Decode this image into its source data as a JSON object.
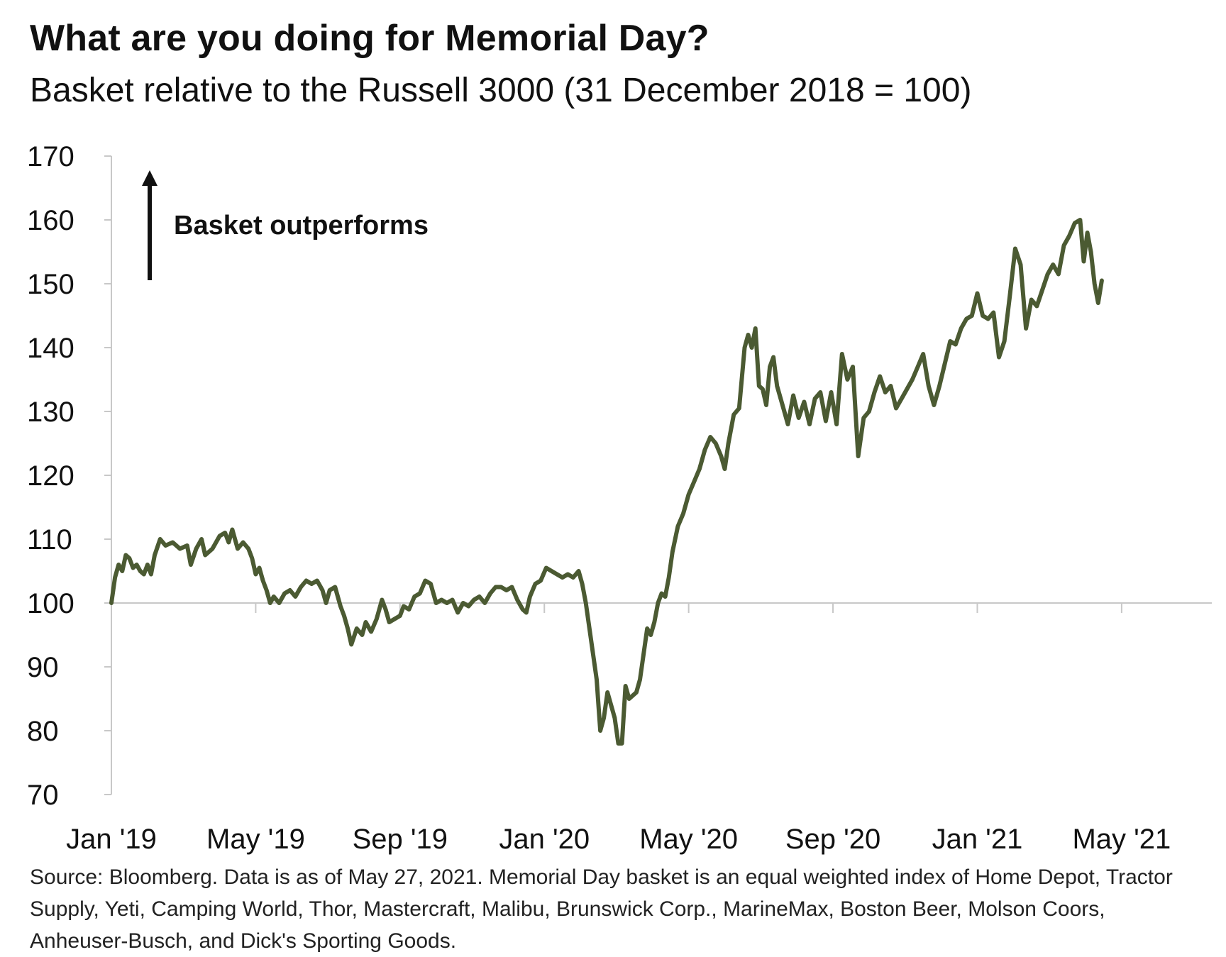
{
  "chart_data": {
    "type": "line",
    "title": "What are you doing for Memorial Day?",
    "subtitle": "Basket relative to the Russell 3000 (31 December 2018 = 100)",
    "xlabel": "",
    "ylabel": "",
    "ylim": [
      70,
      170
    ],
    "yticks": [
      170,
      160,
      150,
      140,
      130,
      120,
      110,
      100,
      90,
      80,
      70
    ],
    "xticks": [
      {
        "label": "Jan '19",
        "t": 0
      },
      {
        "label": "May '19",
        "t": 4
      },
      {
        "label": "Sep '19",
        "t": 8
      },
      {
        "label": "Jan '20",
        "t": 12
      },
      {
        "label": "May '20",
        "t": 16
      },
      {
        "label": "Sep '20",
        "t": 20
      },
      {
        "label": "Jan '21",
        "t": 24
      },
      {
        "label": "May '21",
        "t": 28
      }
    ],
    "x_unit": "months since 31 Dec 2018",
    "reference_line": 100,
    "line_color": "#4b5a32",
    "annotation": {
      "text": "Basket outperforms",
      "direction": "up"
    },
    "series": [
      {
        "name": "Memorial Day basket",
        "points": [
          [
            0.0,
            100
          ],
          [
            0.1,
            104
          ],
          [
            0.2,
            106
          ],
          [
            0.3,
            105
          ],
          [
            0.4,
            107.5
          ],
          [
            0.5,
            107
          ],
          [
            0.6,
            105.5
          ],
          [
            0.7,
            106
          ],
          [
            0.8,
            105
          ],
          [
            0.9,
            104.5
          ],
          [
            1.0,
            106
          ],
          [
            1.1,
            104.5
          ],
          [
            1.2,
            107.5
          ],
          [
            1.35,
            110
          ],
          [
            1.5,
            109
          ],
          [
            1.7,
            109.5
          ],
          [
            1.9,
            108.5
          ],
          [
            2.1,
            109
          ],
          [
            2.2,
            106
          ],
          [
            2.35,
            108.5
          ],
          [
            2.5,
            110
          ],
          [
            2.6,
            107.5
          ],
          [
            2.8,
            108.5
          ],
          [
            3.0,
            110.5
          ],
          [
            3.15,
            111
          ],
          [
            3.25,
            109.5
          ],
          [
            3.35,
            111.5
          ],
          [
            3.5,
            108.5
          ],
          [
            3.65,
            109.5
          ],
          [
            3.8,
            108.5
          ],
          [
            3.9,
            107
          ],
          [
            4.0,
            104.5
          ],
          [
            4.1,
            105.5
          ],
          [
            4.2,
            103.5
          ],
          [
            4.3,
            102
          ],
          [
            4.4,
            100
          ],
          [
            4.5,
            101
          ],
          [
            4.65,
            100
          ],
          [
            4.8,
            101.5
          ],
          [
            4.95,
            102
          ],
          [
            5.1,
            101
          ],
          [
            5.25,
            102.5
          ],
          [
            5.4,
            103.5
          ],
          [
            5.55,
            103
          ],
          [
            5.7,
            103.5
          ],
          [
            5.85,
            102
          ],
          [
            5.95,
            100
          ],
          [
            6.05,
            102
          ],
          [
            6.2,
            102.5
          ],
          [
            6.35,
            99.5
          ],
          [
            6.45,
            98
          ],
          [
            6.55,
            96
          ],
          [
            6.65,
            93.5
          ],
          [
            6.8,
            96
          ],
          [
            6.95,
            95
          ],
          [
            7.05,
            97
          ],
          [
            7.2,
            95.5
          ],
          [
            7.35,
            97.5
          ],
          [
            7.5,
            100.5
          ],
          [
            7.6,
            99
          ],
          [
            7.7,
            97
          ],
          [
            7.85,
            97.5
          ],
          [
            8.0,
            98
          ],
          [
            8.1,
            99.5
          ],
          [
            8.25,
            99
          ],
          [
            8.4,
            101
          ],
          [
            8.55,
            101.5
          ],
          [
            8.7,
            103.5
          ],
          [
            8.85,
            103
          ],
          [
            9.0,
            100
          ],
          [
            9.15,
            100.5
          ],
          [
            9.3,
            100
          ],
          [
            9.45,
            100.5
          ],
          [
            9.6,
            98.5
          ],
          [
            9.75,
            100
          ],
          [
            9.9,
            99.5
          ],
          [
            10.05,
            100.5
          ],
          [
            10.2,
            101
          ],
          [
            10.35,
            100
          ],
          [
            10.5,
            101.5
          ],
          [
            10.65,
            102.5
          ],
          [
            10.8,
            102.5
          ],
          [
            10.95,
            102
          ],
          [
            11.1,
            102.5
          ],
          [
            11.25,
            100.5
          ],
          [
            11.4,
            99
          ],
          [
            11.5,
            98.5
          ],
          [
            11.6,
            101
          ],
          [
            11.75,
            103
          ],
          [
            11.9,
            103.5
          ],
          [
            12.05,
            105.5
          ],
          [
            12.2,
            105
          ],
          [
            12.35,
            104.5
          ],
          [
            12.5,
            104
          ],
          [
            12.65,
            104.5
          ],
          [
            12.8,
            104
          ],
          [
            12.95,
            105
          ],
          [
            13.05,
            103
          ],
          [
            13.15,
            100
          ],
          [
            13.25,
            96
          ],
          [
            13.35,
            92
          ],
          [
            13.45,
            88
          ],
          [
            13.5,
            84
          ],
          [
            13.55,
            80
          ],
          [
            13.65,
            82
          ],
          [
            13.75,
            86
          ],
          [
            13.85,
            84
          ],
          [
            13.95,
            82
          ],
          [
            14.05,
            78
          ],
          [
            14.15,
            78
          ],
          [
            14.25,
            87
          ],
          [
            14.35,
            85
          ],
          [
            14.45,
            85.5
          ],
          [
            14.55,
            86
          ],
          [
            14.65,
            88
          ],
          [
            14.75,
            92
          ],
          [
            14.85,
            96
          ],
          [
            14.95,
            95
          ],
          [
            15.05,
            97
          ],
          [
            15.15,
            100
          ],
          [
            15.25,
            101.5
          ],
          [
            15.35,
            101
          ],
          [
            15.45,
            104
          ],
          [
            15.55,
            108
          ],
          [
            15.7,
            112
          ],
          [
            15.85,
            114
          ],
          [
            16.0,
            117
          ],
          [
            16.15,
            119
          ],
          [
            16.3,
            121
          ],
          [
            16.45,
            124
          ],
          [
            16.6,
            126
          ],
          [
            16.75,
            125
          ],
          [
            16.9,
            123
          ],
          [
            17.0,
            121
          ],
          [
            17.1,
            125
          ],
          [
            17.25,
            129.5
          ],
          [
            17.4,
            130.5
          ],
          [
            17.55,
            140
          ],
          [
            17.65,
            142
          ],
          [
            17.75,
            140
          ],
          [
            17.85,
            143
          ],
          [
            17.95,
            134
          ],
          [
            18.05,
            133.5
          ],
          [
            18.15,
            131
          ],
          [
            18.25,
            137
          ],
          [
            18.35,
            138.5
          ],
          [
            18.45,
            134
          ],
          [
            18.6,
            131
          ],
          [
            18.75,
            128
          ],
          [
            18.9,
            132.5
          ],
          [
            19.05,
            129
          ],
          [
            19.2,
            131.5
          ],
          [
            19.35,
            128
          ],
          [
            19.5,
            132
          ],
          [
            19.65,
            133
          ],
          [
            19.8,
            128.5
          ],
          [
            19.95,
            133
          ],
          [
            20.1,
            128
          ],
          [
            20.25,
            139
          ],
          [
            20.4,
            135
          ],
          [
            20.55,
            137
          ],
          [
            20.7,
            123
          ],
          [
            20.85,
            129
          ],
          [
            21.0,
            130
          ],
          [
            21.15,
            133
          ],
          [
            21.3,
            135.5
          ],
          [
            21.45,
            133
          ],
          [
            21.6,
            134
          ],
          [
            21.75,
            130.5
          ],
          [
            21.9,
            132
          ],
          [
            22.05,
            133.5
          ],
          [
            22.2,
            135
          ],
          [
            22.35,
            137
          ],
          [
            22.5,
            139
          ],
          [
            22.65,
            134
          ],
          [
            22.8,
            131
          ],
          [
            22.95,
            134
          ],
          [
            23.1,
            137.5
          ],
          [
            23.25,
            141
          ],
          [
            23.4,
            140.5
          ],
          [
            23.55,
            143
          ],
          [
            23.7,
            144.5
          ],
          [
            23.85,
            145
          ],
          [
            24.0,
            148.5
          ],
          [
            24.15,
            145
          ],
          [
            24.3,
            144.5
          ],
          [
            24.45,
            145.5
          ],
          [
            24.6,
            138.5
          ],
          [
            24.75,
            141
          ],
          [
            24.9,
            148
          ],
          [
            25.05,
            155.5
          ],
          [
            25.2,
            153
          ],
          [
            25.35,
            143
          ],
          [
            25.5,
            147.5
          ],
          [
            25.65,
            146.5
          ],
          [
            25.8,
            149
          ],
          [
            25.95,
            151.5
          ],
          [
            26.1,
            153
          ],
          [
            26.25,
            151.5
          ],
          [
            26.4,
            156
          ],
          [
            26.55,
            157.5
          ],
          [
            26.7,
            159.5
          ],
          [
            26.85,
            160
          ],
          [
            26.95,
            153.5
          ],
          [
            27.05,
            158
          ],
          [
            27.15,
            155
          ],
          [
            27.25,
            150
          ],
          [
            27.35,
            147
          ],
          [
            27.45,
            150.5
          ]
        ]
      }
    ]
  },
  "source_note": "Source: Bloomberg. Data is as of May 27, 2021. Memorial Day basket is an equal weighted index of Home Depot, Tractor Supply, Yeti, Camping World, Thor, Mastercraft, Malibu, Brunswick Corp., MarineMax, Boston Beer, Molson Coors, Anheuser-Busch, and Dick's Sporting Goods."
}
